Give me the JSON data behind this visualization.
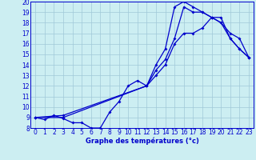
{
  "xlabel": "Graphe des températures (°c)",
  "bg_color": "#cceef2",
  "line_color": "#0000cc",
  "grid_color": "#a0c8d8",
  "xlim": [
    -0.5,
    23.5
  ],
  "ylim": [
    8,
    20
  ],
  "xticks": [
    0,
    1,
    2,
    3,
    4,
    5,
    6,
    7,
    8,
    9,
    10,
    11,
    12,
    13,
    14,
    15,
    16,
    17,
    18,
    19,
    20,
    21,
    22,
    23
  ],
  "yticks": [
    8,
    9,
    10,
    11,
    12,
    13,
    14,
    15,
    16,
    17,
    18,
    19,
    20
  ],
  "line1_x": [
    0,
    1,
    2,
    3,
    4,
    5,
    6,
    7,
    8,
    9,
    10,
    11,
    12,
    13,
    14,
    15,
    16,
    17,
    18,
    19,
    20,
    21,
    22,
    23
  ],
  "line1_y": [
    9.0,
    8.8,
    9.2,
    8.9,
    8.5,
    8.5,
    8.0,
    8.0,
    9.5,
    10.5,
    12.0,
    12.5,
    12.0,
    14.0,
    15.5,
    19.5,
    20.0,
    19.5,
    19.0,
    18.5,
    18.0,
    17.0,
    16.5,
    14.7
  ],
  "line2_x": [
    0,
    3,
    12,
    13,
    14,
    15,
    16,
    17,
    18,
    19,
    20,
    21,
    22,
    23
  ],
  "line2_y": [
    9.0,
    9.2,
    12.0,
    13.5,
    14.5,
    16.5,
    19.5,
    19.0,
    19.0,
    18.5,
    18.5,
    16.5,
    15.5,
    14.7
  ],
  "line3_x": [
    0,
    3,
    12,
    13,
    14,
    15,
    16,
    17,
    18,
    19,
    20,
    21,
    22,
    23
  ],
  "line3_y": [
    9.0,
    9.0,
    12.0,
    13.0,
    14.0,
    16.0,
    17.0,
    17.0,
    17.5,
    18.5,
    18.0,
    16.5,
    15.5,
    14.7
  ],
  "marker": "D",
  "markersize": 2.0,
  "linewidth": 0.9,
  "xlabel_fontsize": 6.0,
  "tick_fontsize": 5.5
}
